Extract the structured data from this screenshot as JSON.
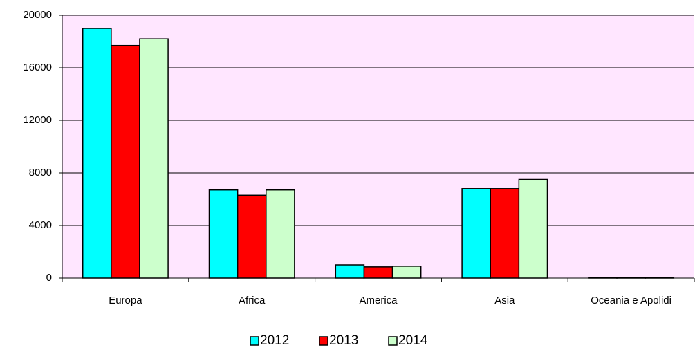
{
  "chart_data": {
    "type": "bar",
    "categories": [
      "Europa",
      "Africa",
      "America",
      "Asia",
      "Oceania e Apolidi"
    ],
    "series": [
      {
        "name": "2012",
        "color": "#00ffff",
        "values": [
          19000,
          6700,
          1000,
          6800,
          20
        ]
      },
      {
        "name": "2013",
        "color": "#ff0000",
        "values": [
          17700,
          6300,
          850,
          6800,
          20
        ]
      },
      {
        "name": "2014",
        "color": "#ccffcc",
        "values": [
          18200,
          6700,
          900,
          7500,
          20
        ]
      }
    ],
    "ylim": [
      0,
      20000
    ],
    "yticks": [
      0,
      4000,
      8000,
      12000,
      16000,
      20000
    ],
    "grid": true,
    "legend": "bottom",
    "background": "#ffe6ff"
  }
}
